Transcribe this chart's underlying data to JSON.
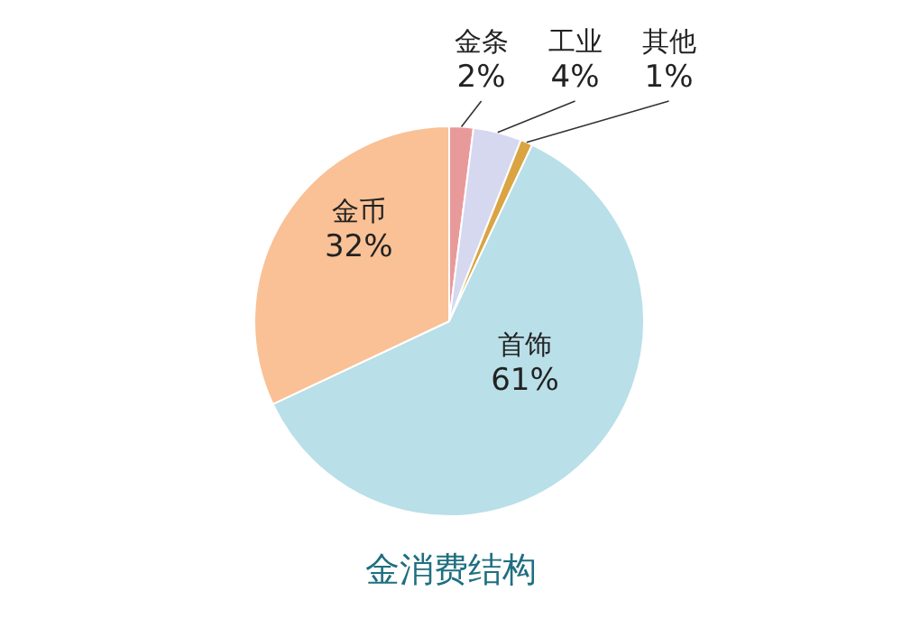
{
  "chart_data": {
    "type": "pie",
    "title": "金消费结构",
    "categories": [
      "金条",
      "工业",
      "其他",
      "首饰",
      "金币"
    ],
    "values": [
      2,
      4,
      1,
      61,
      32
    ],
    "colors": [
      "#e89a9a",
      "#d6d8f0",
      "#d9a441",
      "#b9dfe8",
      "#f9c195"
    ],
    "value_labels": [
      "2%",
      "4%",
      "1%",
      "61%",
      "32%"
    ]
  }
}
